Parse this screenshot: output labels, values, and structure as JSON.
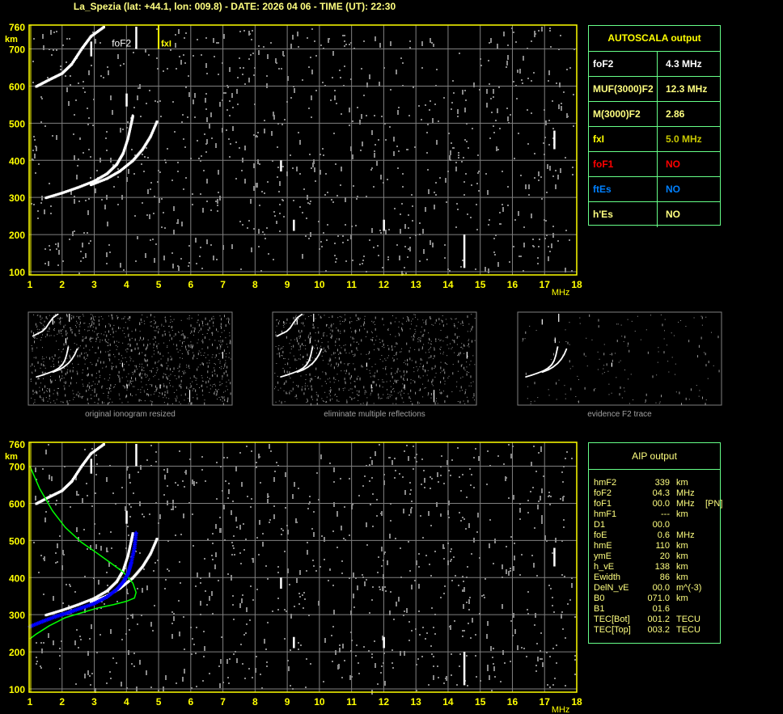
{
  "title": "La_Spezia (lat: +44.1, lon: 009.8) - DATE: 2026 04 06 - TIME (UT): 22:30",
  "colors": {
    "axis": "#ffff00",
    "grid": "#808080",
    "trace": "#ffffff",
    "noise": "#8a8a8a",
    "profile": "#00ff00",
    "aip_trace": "#0000ff",
    "table_border": "#66ff88"
  },
  "chart_data": [
    {
      "type": "scatter",
      "name_on_chart": "",
      "x_unit_label": "MHz",
      "y_unit_label": "km",
      "xlim": [
        1,
        18
      ],
      "ylim": [
        100,
        760
      ],
      "x_ticks": [
        "1",
        "2",
        "3",
        "4",
        "5",
        "6",
        "7",
        "8",
        "9",
        "10",
        "11",
        "12",
        "13",
        "14",
        "15",
        "16",
        "17",
        "18"
      ],
      "y_ticks": [
        "760",
        "700",
        "600",
        "500",
        "400",
        "300",
        "200",
        "100"
      ],
      "grid": true,
      "annotations": [
        {
          "text": "foF2",
          "x": 4.3,
          "color": "#ffffff"
        },
        {
          "text": "fxI",
          "x": 5.0,
          "color": "#ffff00"
        }
      ],
      "o_trace": [
        [
          1.5,
          300
        ],
        [
          2,
          313
        ],
        [
          2.5,
          328
        ],
        [
          3,
          345
        ],
        [
          3.4,
          365
        ],
        [
          3.7,
          390
        ],
        [
          3.9,
          420
        ],
        [
          4.05,
          460
        ],
        [
          4.15,
          500
        ],
        [
          4.2,
          520
        ]
      ],
      "x_trace": [
        [
          2.9,
          335
        ],
        [
          3.4,
          352
        ],
        [
          3.8,
          372
        ],
        [
          4.2,
          400
        ],
        [
          4.5,
          430
        ],
        [
          4.75,
          465
        ],
        [
          4.95,
          505
        ]
      ],
      "second_hop": [
        [
          1.2,
          600
        ],
        [
          1.6,
          618
        ],
        [
          2.0,
          635
        ],
        [
          2.3,
          660
        ],
        [
          2.6,
          700
        ],
        [
          2.9,
          735
        ],
        [
          3.3,
          760
        ]
      ],
      "vertical_marks": [
        [
          4.3,
          700,
          760
        ],
        [
          4.0,
          545,
          580
        ],
        [
          2.9,
          680,
          720
        ],
        [
          8.8,
          370,
          400
        ],
        [
          9.2,
          210,
          240
        ],
        [
          12.0,
          210,
          240
        ],
        [
          14.5,
          110,
          200
        ],
        [
          17.3,
          430,
          480
        ]
      ]
    },
    {
      "type": "line",
      "xlim": [
        1,
        18
      ],
      "ylim": [
        100,
        760
      ],
      "x_ticks": [
        "1",
        "2",
        "3",
        "4",
        "5",
        "6",
        "7",
        "8",
        "9",
        "10",
        "11",
        "12",
        "13",
        "14",
        "15",
        "16",
        "17",
        "18"
      ],
      "y_ticks": [
        "760",
        "700",
        "600",
        "500",
        "400",
        "300",
        "200",
        "100"
      ],
      "x_unit_label": "MHz",
      "y_unit_label": "km",
      "grid": true,
      "profile": [
        [
          1,
          700
        ],
        [
          1.3,
          640
        ],
        [
          1.7,
          580
        ],
        [
          2.1,
          535
        ],
        [
          2.6,
          495
        ],
        [
          3.1,
          465
        ],
        [
          3.5,
          440
        ],
        [
          3.9,
          415
        ],
        [
          4.2,
          385
        ],
        [
          4.3,
          360
        ],
        [
          4.25,
          345
        ],
        [
          4.0,
          336
        ],
        [
          3.6,
          327
        ],
        [
          3.1,
          318
        ],
        [
          2.6,
          305
        ],
        [
          2.1,
          292
        ],
        [
          1.6,
          270
        ],
        [
          1.2,
          248
        ],
        [
          1,
          235
        ]
      ],
      "aip_trace": [
        [
          1,
          268
        ],
        [
          1.4,
          282
        ],
        [
          1.8,
          295
        ],
        [
          2.2,
          306
        ],
        [
          2.6,
          318
        ],
        [
          3,
          330
        ],
        [
          3.4,
          348
        ],
        [
          3.7,
          368
        ],
        [
          3.9,
          388
        ],
        [
          4.05,
          410
        ],
        [
          4.15,
          440
        ],
        [
          4.25,
          480
        ],
        [
          4.3,
          520
        ]
      ]
    }
  ],
  "thumbnails": [
    {
      "caption": "original ionogram resized",
      "noise": 1.0
    },
    {
      "caption": "eliminate multiple reflections",
      "noise": 0.8
    },
    {
      "caption": "evidence F2 trace",
      "noise": 0.15
    }
  ],
  "autoscala": {
    "header": "AUTOSCALA output",
    "rows": [
      {
        "label": "foF2",
        "value": "4.3 MHz",
        "label_color": "#ffffff",
        "value_color": "#ffffff"
      },
      {
        "label": "MUF(3000)F2",
        "value": "12.3 MHz",
        "label_color": "#ffff80",
        "value_color": "#ffff80"
      },
      {
        "label": "M(3000)F2",
        "value": "2.86",
        "label_color": "#ffff80",
        "value_color": "#ffff80"
      },
      {
        "label": "fxI",
        "value": "5.0 MHz",
        "label_color": "#ffff00",
        "value_color": "#c8c800"
      },
      {
        "label": "foF1",
        "value": "NO",
        "label_color": "#ff0000",
        "value_color": "#ff0000"
      },
      {
        "label": "ftEs",
        "value": "NO",
        "label_color": "#0080ff",
        "value_color": "#0080ff"
      },
      {
        "label": "h'Es",
        "value": "NO",
        "label_color": "#ffff80",
        "value_color": "#ffff80"
      }
    ]
  },
  "aip": {
    "header": "AIP output",
    "rows": [
      {
        "name": "hmF2",
        "value": "339",
        "unit": "km",
        "extra": ""
      },
      {
        "name": "foF2",
        "value": "04.3",
        "unit": "MHz",
        "extra": ""
      },
      {
        "name": "foF1",
        "value": "00.0",
        "unit": "MHz",
        "extra": "[PN]"
      },
      {
        "name": "hmF1",
        "value": "---",
        "unit": "km",
        "extra": ""
      },
      {
        "name": "D1",
        "value": "00.0",
        "unit": "",
        "extra": ""
      },
      {
        "name": "foE",
        "value": "0.6",
        "unit": "MHz",
        "extra": ""
      },
      {
        "name": "hmE",
        "value": "110",
        "unit": "km",
        "extra": ""
      },
      {
        "name": "ymE",
        "value": "20",
        "unit": "km",
        "extra": ""
      },
      {
        "name": "h_vE",
        "value": "138",
        "unit": "km",
        "extra": ""
      },
      {
        "name": "Ewidth",
        "value": "86",
        "unit": "km",
        "extra": ""
      },
      {
        "name": "DelN_vE",
        "value": "00.0",
        "unit": "m^(-3)",
        "extra": ""
      },
      {
        "name": "B0",
        "value": "071.0",
        "unit": "km",
        "extra": ""
      },
      {
        "name": "B1",
        "value": "01.6",
        "unit": "",
        "extra": ""
      },
      {
        "name": "TEC[Bot]",
        "value": "001.2",
        "unit": "TECU",
        "extra": ""
      },
      {
        "name": "TEC[Top]",
        "value": "003.2",
        "unit": "TECU",
        "extra": ""
      }
    ]
  }
}
